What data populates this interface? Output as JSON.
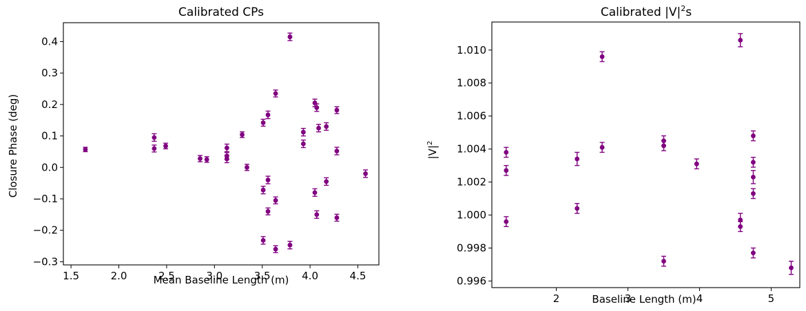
{
  "marker_color": "#800080",
  "chart_data": [
    {
      "type": "scatter",
      "title": "Calibrated CPs",
      "xlabel": "Mean Baseline Length (m)",
      "ylabel": "Closure Phase (deg)",
      "xlim": [
        1.42,
        4.72
      ],
      "ylim": [
        -0.31,
        0.46
      ],
      "xticks": [
        1.5,
        2.0,
        2.5,
        3.0,
        3.5,
        4.0,
        4.5
      ],
      "xtick_labels": [
        "1.5",
        "2.0",
        "2.5",
        "3.0",
        "3.5",
        "4.0",
        "4.5"
      ],
      "yticks": [
        -0.3,
        -0.2,
        -0.1,
        0.0,
        0.1,
        0.2,
        0.3,
        0.4
      ],
      "ytick_labels": [
        "−0.3",
        "−0.2",
        "−0.1",
        "0.0",
        "0.1",
        "0.2",
        "0.3",
        "0.4"
      ],
      "grid": false,
      "series": [
        {
          "color": "#800080",
          "points": [
            {
              "x": 1.65,
              "y": 0.057,
              "err": 0.007
            },
            {
              "x": 2.37,
              "y": 0.095,
              "err": 0.012
            },
            {
              "x": 2.37,
              "y": 0.06,
              "err": 0.011
            },
            {
              "x": 2.49,
              "y": 0.068,
              "err": 0.009
            },
            {
              "x": 2.85,
              "y": 0.028,
              "err": 0.01
            },
            {
              "x": 2.92,
              "y": 0.025,
              "err": 0.009
            },
            {
              "x": 3.13,
              "y": 0.062,
              "err": 0.012
            },
            {
              "x": 3.13,
              "y": 0.036,
              "err": 0.011
            },
            {
              "x": 3.13,
              "y": 0.027,
              "err": 0.012
            },
            {
              "x": 3.29,
              "y": 0.104,
              "err": 0.009
            },
            {
              "x": 3.34,
              "y": 0.0,
              "err": 0.01
            },
            {
              "x": 3.51,
              "y": 0.142,
              "err": 0.011
            },
            {
              "x": 3.51,
              "y": -0.072,
              "err": 0.012
            },
            {
              "x": 3.51,
              "y": -0.232,
              "err": 0.012
            },
            {
              "x": 3.56,
              "y": 0.167,
              "err": 0.012
            },
            {
              "x": 3.56,
              "y": -0.04,
              "err": 0.012
            },
            {
              "x": 3.56,
              "y": -0.14,
              "err": 0.011
            },
            {
              "x": 3.64,
              "y": 0.235,
              "err": 0.011
            },
            {
              "x": 3.64,
              "y": -0.105,
              "err": 0.011
            },
            {
              "x": 3.64,
              "y": -0.26,
              "err": 0.011
            },
            {
              "x": 3.79,
              "y": 0.415,
              "err": 0.012
            },
            {
              "x": 3.79,
              "y": -0.247,
              "err": 0.012
            },
            {
              "x": 3.93,
              "y": 0.112,
              "err": 0.012
            },
            {
              "x": 3.93,
              "y": 0.075,
              "err": 0.012
            },
            {
              "x": 4.05,
              "y": 0.205,
              "err": 0.012
            },
            {
              "x": 4.05,
              "y": -0.08,
              "err": 0.012
            },
            {
              "x": 4.07,
              "y": 0.19,
              "err": 0.012
            },
            {
              "x": 4.07,
              "y": -0.15,
              "err": 0.012
            },
            {
              "x": 4.09,
              "y": 0.125,
              "err": 0.012
            },
            {
              "x": 4.17,
              "y": 0.13,
              "err": 0.012
            },
            {
              "x": 4.17,
              "y": -0.045,
              "err": 0.012
            },
            {
              "x": 4.28,
              "y": 0.182,
              "err": 0.011
            },
            {
              "x": 4.28,
              "y": 0.052,
              "err": 0.012
            },
            {
              "x": 4.28,
              "y": -0.16,
              "err": 0.011
            },
            {
              "x": 4.58,
              "y": -0.02,
              "err": 0.012
            }
          ]
        }
      ]
    },
    {
      "type": "scatter",
      "title": "Calibrated |V|²s",
      "title_text": "Calibrated |V|",
      "title_sup": "2",
      "title_suffix": "s",
      "xlabel": "Baseline Length (m)",
      "ylabel": "|V|²",
      "ylabel_text": "|V|",
      "ylabel_sup": "2",
      "xlim": [
        1.1,
        5.4
      ],
      "ylim": [
        0.9956,
        1.0117
      ],
      "xticks": [
        2,
        3,
        4,
        5
      ],
      "xtick_labels": [
        "2",
        "3",
        "4",
        "5"
      ],
      "yticks": [
        0.996,
        0.998,
        1.0,
        1.002,
        1.004,
        1.006,
        1.008,
        1.01
      ],
      "ytick_labels": [
        "0.996",
        "0.998",
        "1.000",
        "1.002",
        "1.004",
        "1.006",
        "1.008",
        "1.010"
      ],
      "grid": false,
      "series": [
        {
          "color": "#800080",
          "points": [
            {
              "x": 1.3,
              "y": 1.0038,
              "err": 0.0003
            },
            {
              "x": 1.3,
              "y": 1.0027,
              "err": 0.0003
            },
            {
              "x": 1.3,
              "y": 0.9996,
              "err": 0.0003
            },
            {
              "x": 2.29,
              "y": 1.0034,
              "err": 0.0004
            },
            {
              "x": 2.29,
              "y": 1.0004,
              "err": 0.0003
            },
            {
              "x": 2.64,
              "y": 1.0096,
              "err": 0.0003
            },
            {
              "x": 2.64,
              "y": 1.0041,
              "err": 0.0003
            },
            {
              "x": 3.5,
              "y": 1.0045,
              "err": 0.0003
            },
            {
              "x": 3.5,
              "y": 1.0042,
              "err": 0.0003
            },
            {
              "x": 3.5,
              "y": 0.9972,
              "err": 0.0003
            },
            {
              "x": 3.96,
              "y": 1.0031,
              "err": 0.0003
            },
            {
              "x": 4.57,
              "y": 1.0106,
              "err": 0.0004
            },
            {
              "x": 4.57,
              "y": 0.9997,
              "err": 0.0004
            },
            {
              "x": 4.57,
              "y": 0.9993,
              "err": 0.0003
            },
            {
              "x": 4.75,
              "y": 1.0048,
              "err": 0.0003
            },
            {
              "x": 4.75,
              "y": 1.0032,
              "err": 0.0003
            },
            {
              "x": 4.75,
              "y": 1.0023,
              "err": 0.0004
            },
            {
              "x": 4.75,
              "y": 1.0013,
              "err": 0.0003
            },
            {
              "x": 4.75,
              "y": 0.9977,
              "err": 0.0003
            },
            {
              "x": 5.28,
              "y": 0.9968,
              "err": 0.0004
            }
          ]
        }
      ]
    }
  ]
}
